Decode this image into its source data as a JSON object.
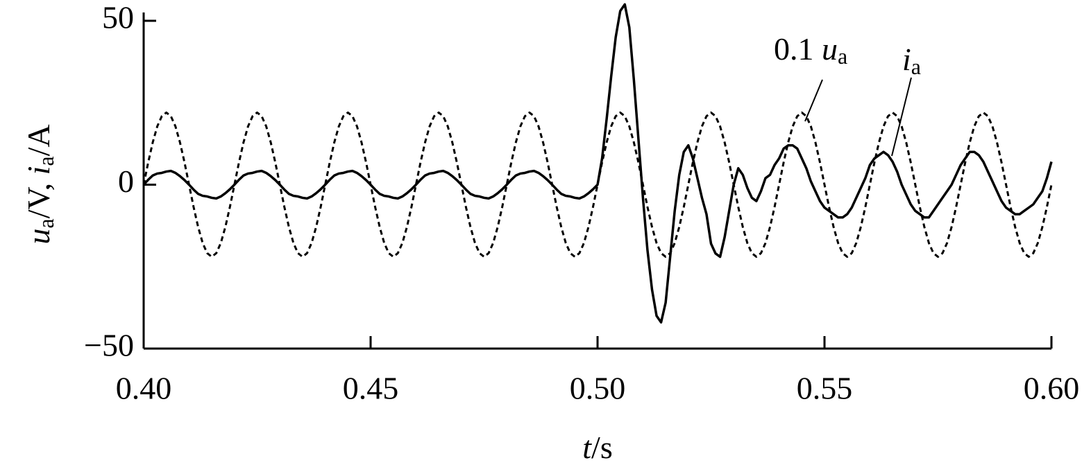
{
  "chart_data": {
    "type": "line",
    "xlabel": [
      {
        "text": "t",
        "italic": true
      },
      {
        "text": "/s"
      }
    ],
    "ylabel": [
      {
        "text": "u",
        "italic": true
      },
      {
        "text": "a",
        "sub": true
      },
      {
        "text": "/V, "
      },
      {
        "text": "i",
        "italic": true
      },
      {
        "text": "a",
        "sub": true
      },
      {
        "text": "/A"
      }
    ],
    "xlim": [
      0.4,
      0.6
    ],
    "xticks": [
      {
        "value": 0.4,
        "label": "0.40"
      },
      {
        "value": 0.45,
        "label": "0.45"
      },
      {
        "value": 0.5,
        "label": "0.50"
      },
      {
        "value": 0.55,
        "label": "0.55"
      },
      {
        "value": 0.6,
        "label": "0.60"
      }
    ],
    "ylim": [
      -50,
      50
    ],
    "yticks": [
      {
        "value": -50,
        "label": "−50"
      },
      0,
      50
    ],
    "grid": false,
    "x": [
      0.4,
      0.401,
      0.402,
      0.403,
      0.404,
      0.405,
      0.406,
      0.407,
      0.408,
      0.409,
      0.41,
      0.411,
      0.412,
      0.413,
      0.414,
      0.415,
      0.416,
      0.417,
      0.418,
      0.419,
      0.42,
      0.421,
      0.422,
      0.423,
      0.424,
      0.425,
      0.426,
      0.427,
      0.428,
      0.429,
      0.43,
      0.431,
      0.432,
      0.433,
      0.434,
      0.435,
      0.436,
      0.437,
      0.438,
      0.439,
      0.44,
      0.441,
      0.442,
      0.443,
      0.444,
      0.445,
      0.446,
      0.447,
      0.448,
      0.449,
      0.45,
      0.451,
      0.452,
      0.453,
      0.454,
      0.455,
      0.456,
      0.457,
      0.458,
      0.459,
      0.46,
      0.461,
      0.462,
      0.463,
      0.464,
      0.465,
      0.466,
      0.467,
      0.468,
      0.469,
      0.47,
      0.471,
      0.472,
      0.473,
      0.474,
      0.475,
      0.476,
      0.477,
      0.478,
      0.479,
      0.48,
      0.481,
      0.482,
      0.483,
      0.484,
      0.485,
      0.486,
      0.487,
      0.488,
      0.489,
      0.49,
      0.491,
      0.492,
      0.493,
      0.494,
      0.495,
      0.496,
      0.497,
      0.498,
      0.499,
      0.5,
      0.501,
      0.502,
      0.503,
      0.504,
      0.505,
      0.506,
      0.507,
      0.508,
      0.509,
      0.51,
      0.511,
      0.512,
      0.513,
      0.514,
      0.515,
      0.516,
      0.517,
      0.518,
      0.519,
      0.52,
      0.521,
      0.522,
      0.523,
      0.524,
      0.525,
      0.526,
      0.527,
      0.528,
      0.529,
      0.53,
      0.531,
      0.532,
      0.533,
      0.534,
      0.535,
      0.536,
      0.537,
      0.538,
      0.539,
      0.54,
      0.541,
      0.542,
      0.543,
      0.544,
      0.545,
      0.546,
      0.547,
      0.548,
      0.549,
      0.55,
      0.551,
      0.552,
      0.553,
      0.554,
      0.555,
      0.556,
      0.557,
      0.558,
      0.559,
      0.56,
      0.561,
      0.562,
      0.563,
      0.564,
      0.565,
      0.566,
      0.567,
      0.568,
      0.569,
      0.57,
      0.571,
      0.572,
      0.573,
      0.574,
      0.575,
      0.576,
      0.577,
      0.578,
      0.579,
      0.58,
      0.581,
      0.582,
      0.583,
      0.584,
      0.585,
      0.586,
      0.587,
      0.588,
      0.589,
      0.59,
      0.591,
      0.592,
      0.593,
      0.594,
      0.595,
      0.596,
      0.597,
      0.598,
      0.599,
      0.6
    ],
    "series": [
      {
        "name": [
          {
            "text": "0.1 "
          },
          {
            "text": "u",
            "italic": true
          },
          {
            "text": "a",
            "sub": true
          }
        ],
        "color": "#000000",
        "dashed": true,
        "values": [
          0,
          6.8,
          12.9,
          17.8,
          20.9,
          22,
          20.9,
          17.8,
          12.9,
          6.8,
          0,
          -6.8,
          -12.9,
          -17.8,
          -20.9,
          -22,
          -20.9,
          -17.8,
          -12.9,
          -6.8,
          0,
          6.8,
          12.9,
          17.8,
          20.9,
          22,
          20.9,
          17.8,
          12.9,
          6.8,
          0,
          -6.8,
          -12.9,
          -17.8,
          -20.9,
          -22,
          -20.9,
          -17.8,
          -12.9,
          -6.8,
          0,
          6.8,
          12.9,
          17.8,
          20.9,
          22,
          20.9,
          17.8,
          12.9,
          6.8,
          0,
          -6.8,
          -12.9,
          -17.8,
          -20.9,
          -22,
          -20.9,
          -17.8,
          -12.9,
          -6.8,
          0,
          6.8,
          12.9,
          17.8,
          20.9,
          22,
          20.9,
          17.8,
          12.9,
          6.8,
          0,
          -6.8,
          -12.9,
          -17.8,
          -20.9,
          -22,
          -20.9,
          -17.8,
          -12.9,
          -6.8,
          0,
          6.8,
          12.9,
          17.8,
          20.9,
          22,
          20.9,
          17.8,
          12.9,
          6.8,
          0,
          -6.8,
          -12.9,
          -17.8,
          -20.9,
          -22,
          -20.9,
          -17.8,
          -12.9,
          -6.8,
          0,
          6.8,
          12.9,
          17.8,
          20.9,
          22,
          20.9,
          17.8,
          12.9,
          6.8,
          0,
          -6.8,
          -12.9,
          -17.8,
          -20.9,
          -22,
          -20.9,
          -17.8,
          -12.9,
          -6.8,
          0,
          6.8,
          12.9,
          17.8,
          20.9,
          22,
          20.9,
          17.8,
          12.9,
          6.8,
          0,
          -6.8,
          -12.9,
          -17.8,
          -20.9,
          -22,
          -20.9,
          -17.8,
          -12.9,
          -6.8,
          0,
          6.8,
          12.9,
          17.8,
          20.9,
          22,
          20.9,
          17.8,
          12.9,
          6.8,
          0,
          -6.8,
          -12.9,
          -17.8,
          -20.9,
          -22,
          -20.9,
          -17.8,
          -12.9,
          -6.8,
          0,
          6.8,
          12.9,
          17.8,
          20.9,
          22,
          20.9,
          17.8,
          12.9,
          6.8,
          0,
          -6.8,
          -12.9,
          -17.8,
          -20.9,
          -22,
          -20.9,
          -17.8,
          -12.9,
          -6.8,
          0,
          6.8,
          12.9,
          17.8,
          20.9,
          22,
          20.9,
          17.8,
          12.9,
          6.8,
          0,
          -6.8,
          -12.9,
          -17.8,
          -20.9,
          -22,
          -20.9,
          -17.8,
          -12.9,
          -6.8,
          0
        ]
      },
      {
        "name": [
          {
            "text": "i",
            "italic": true
          },
          {
            "text": "a",
            "sub": true
          }
        ],
        "color": "#000000",
        "dashed": false,
        "values": [
          0,
          1.5,
          2.8,
          3.4,
          3.6,
          4,
          4.2,
          3.6,
          2.6,
          1.4,
          0,
          -1.5,
          -2.8,
          -3.4,
          -3.6,
          -4,
          -4.2,
          -3.6,
          -2.6,
          -1.4,
          0,
          1.5,
          2.8,
          3.4,
          3.6,
          4,
          4.2,
          3.6,
          2.6,
          1.4,
          0,
          -1.5,
          -2.8,
          -3.4,
          -3.6,
          -4,
          -4.2,
          -3.6,
          -2.6,
          -1.4,
          0,
          1.5,
          2.8,
          3.4,
          3.6,
          4,
          4.2,
          3.6,
          2.6,
          1.4,
          0,
          -1.5,
          -2.8,
          -3.4,
          -3.6,
          -4,
          -4.2,
          -3.6,
          -2.6,
          -1.4,
          0,
          1.5,
          2.8,
          3.4,
          3.6,
          4,
          4.2,
          3.6,
          2.6,
          1.4,
          0,
          -1.5,
          -2.8,
          -3.4,
          -3.6,
          -4,
          -4.2,
          -3.6,
          -2.6,
          -1.4,
          0,
          1.5,
          2.8,
          3.4,
          3.6,
          4,
          4.2,
          3.6,
          2.6,
          1.4,
          0,
          -1.5,
          -2.8,
          -3.4,
          -3.6,
          -4,
          -4.2,
          -3.6,
          -2.6,
          -1.4,
          0,
          8,
          20,
          33,
          45,
          53,
          55,
          48,
          32,
          14,
          -4,
          -20,
          -32,
          -40,
          -42,
          -36,
          -22,
          -8,
          3,
          10,
          12,
          8,
          2,
          -4,
          -9,
          -18,
          -21,
          -22,
          -16,
          -8,
          0,
          5,
          3,
          -1,
          -4,
          -5,
          -2,
          2,
          3,
          6,
          8,
          11,
          12,
          12,
          11,
          8,
          5,
          1,
          -2,
          -5,
          -7,
          -8,
          -9,
          -10,
          -10,
          -9,
          -7,
          -4,
          -1,
          2,
          6,
          8,
          9,
          10,
          9,
          7,
          4,
          0,
          -3,
          -6,
          -8,
          -9,
          -10,
          -10,
          -8,
          -6,
          -4,
          -2,
          0,
          3,
          6,
          8,
          10,
          10,
          9,
          7,
          4,
          1,
          -2,
          -5,
          -7,
          -8,
          -9,
          -9,
          -8,
          -7,
          -6,
          -4,
          -2,
          2,
          7
        ]
      }
    ]
  }
}
